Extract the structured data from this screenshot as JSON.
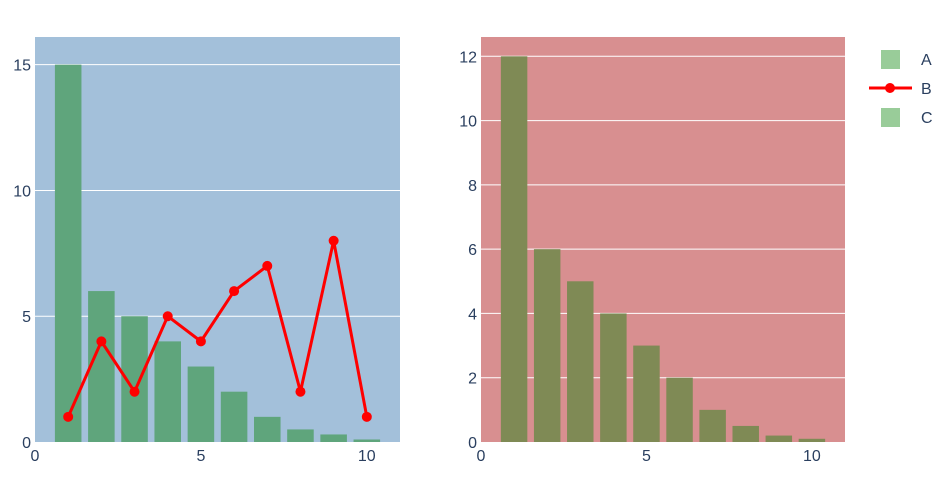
{
  "colors": {
    "page_bg": "#ffffff",
    "left_plot_bg": "#a3c0da",
    "right_plot_bg": "#d88f90",
    "grid": "#ffffff",
    "bar_A": "#5fa57c",
    "bar_C": "#7f8a55",
    "line_B": "#ff0000",
    "legend_bar": "#99cc99",
    "tick_text": "#2a3f5f"
  },
  "legend": [
    {
      "label": "A",
      "kind": "bar",
      "color": "#99cc99"
    },
    {
      "label": "B",
      "kind": "line",
      "color": "#ff0000"
    },
    {
      "label": "C",
      "kind": "bar",
      "color": "#99cc99"
    }
  ],
  "chart_data": [
    {
      "type": "bar+line",
      "title": "",
      "xlabel": "",
      "ylabel": "",
      "xlim": [
        0,
        11
      ],
      "ylim": [
        0,
        16.1
      ],
      "x_ticks": [
        0,
        5,
        10
      ],
      "y_ticks": [
        0,
        5,
        10,
        15
      ],
      "grid": "horizontal",
      "series": [
        {
          "name": "A",
          "type": "bar",
          "x": [
            1,
            2,
            3,
            4,
            5,
            6,
            7,
            8,
            9,
            10
          ],
          "values": [
            15,
            6,
            5,
            4,
            3,
            2,
            1,
            0.5,
            0.3,
            0.1
          ]
        },
        {
          "name": "B",
          "type": "line+markers",
          "x": [
            1,
            2,
            3,
            4,
            5,
            6,
            7,
            8,
            9,
            10
          ],
          "values": [
            1,
            4,
            2,
            5,
            4,
            6,
            7,
            2,
            8,
            1
          ]
        }
      ]
    },
    {
      "type": "bar",
      "title": "",
      "xlabel": "",
      "ylabel": "",
      "xlim": [
        0,
        11
      ],
      "ylim": [
        0,
        12.6
      ],
      "x_ticks": [
        0,
        5,
        10
      ],
      "y_ticks": [
        0,
        2,
        4,
        6,
        8,
        10,
        12
      ],
      "grid": "horizontal",
      "series": [
        {
          "name": "C",
          "type": "bar",
          "x": [
            1,
            2,
            3,
            4,
            5,
            6,
            7,
            8,
            9,
            10
          ],
          "values": [
            12,
            6,
            5,
            4,
            3,
            2,
            1,
            0.5,
            0.2,
            0.1
          ]
        }
      ]
    }
  ]
}
